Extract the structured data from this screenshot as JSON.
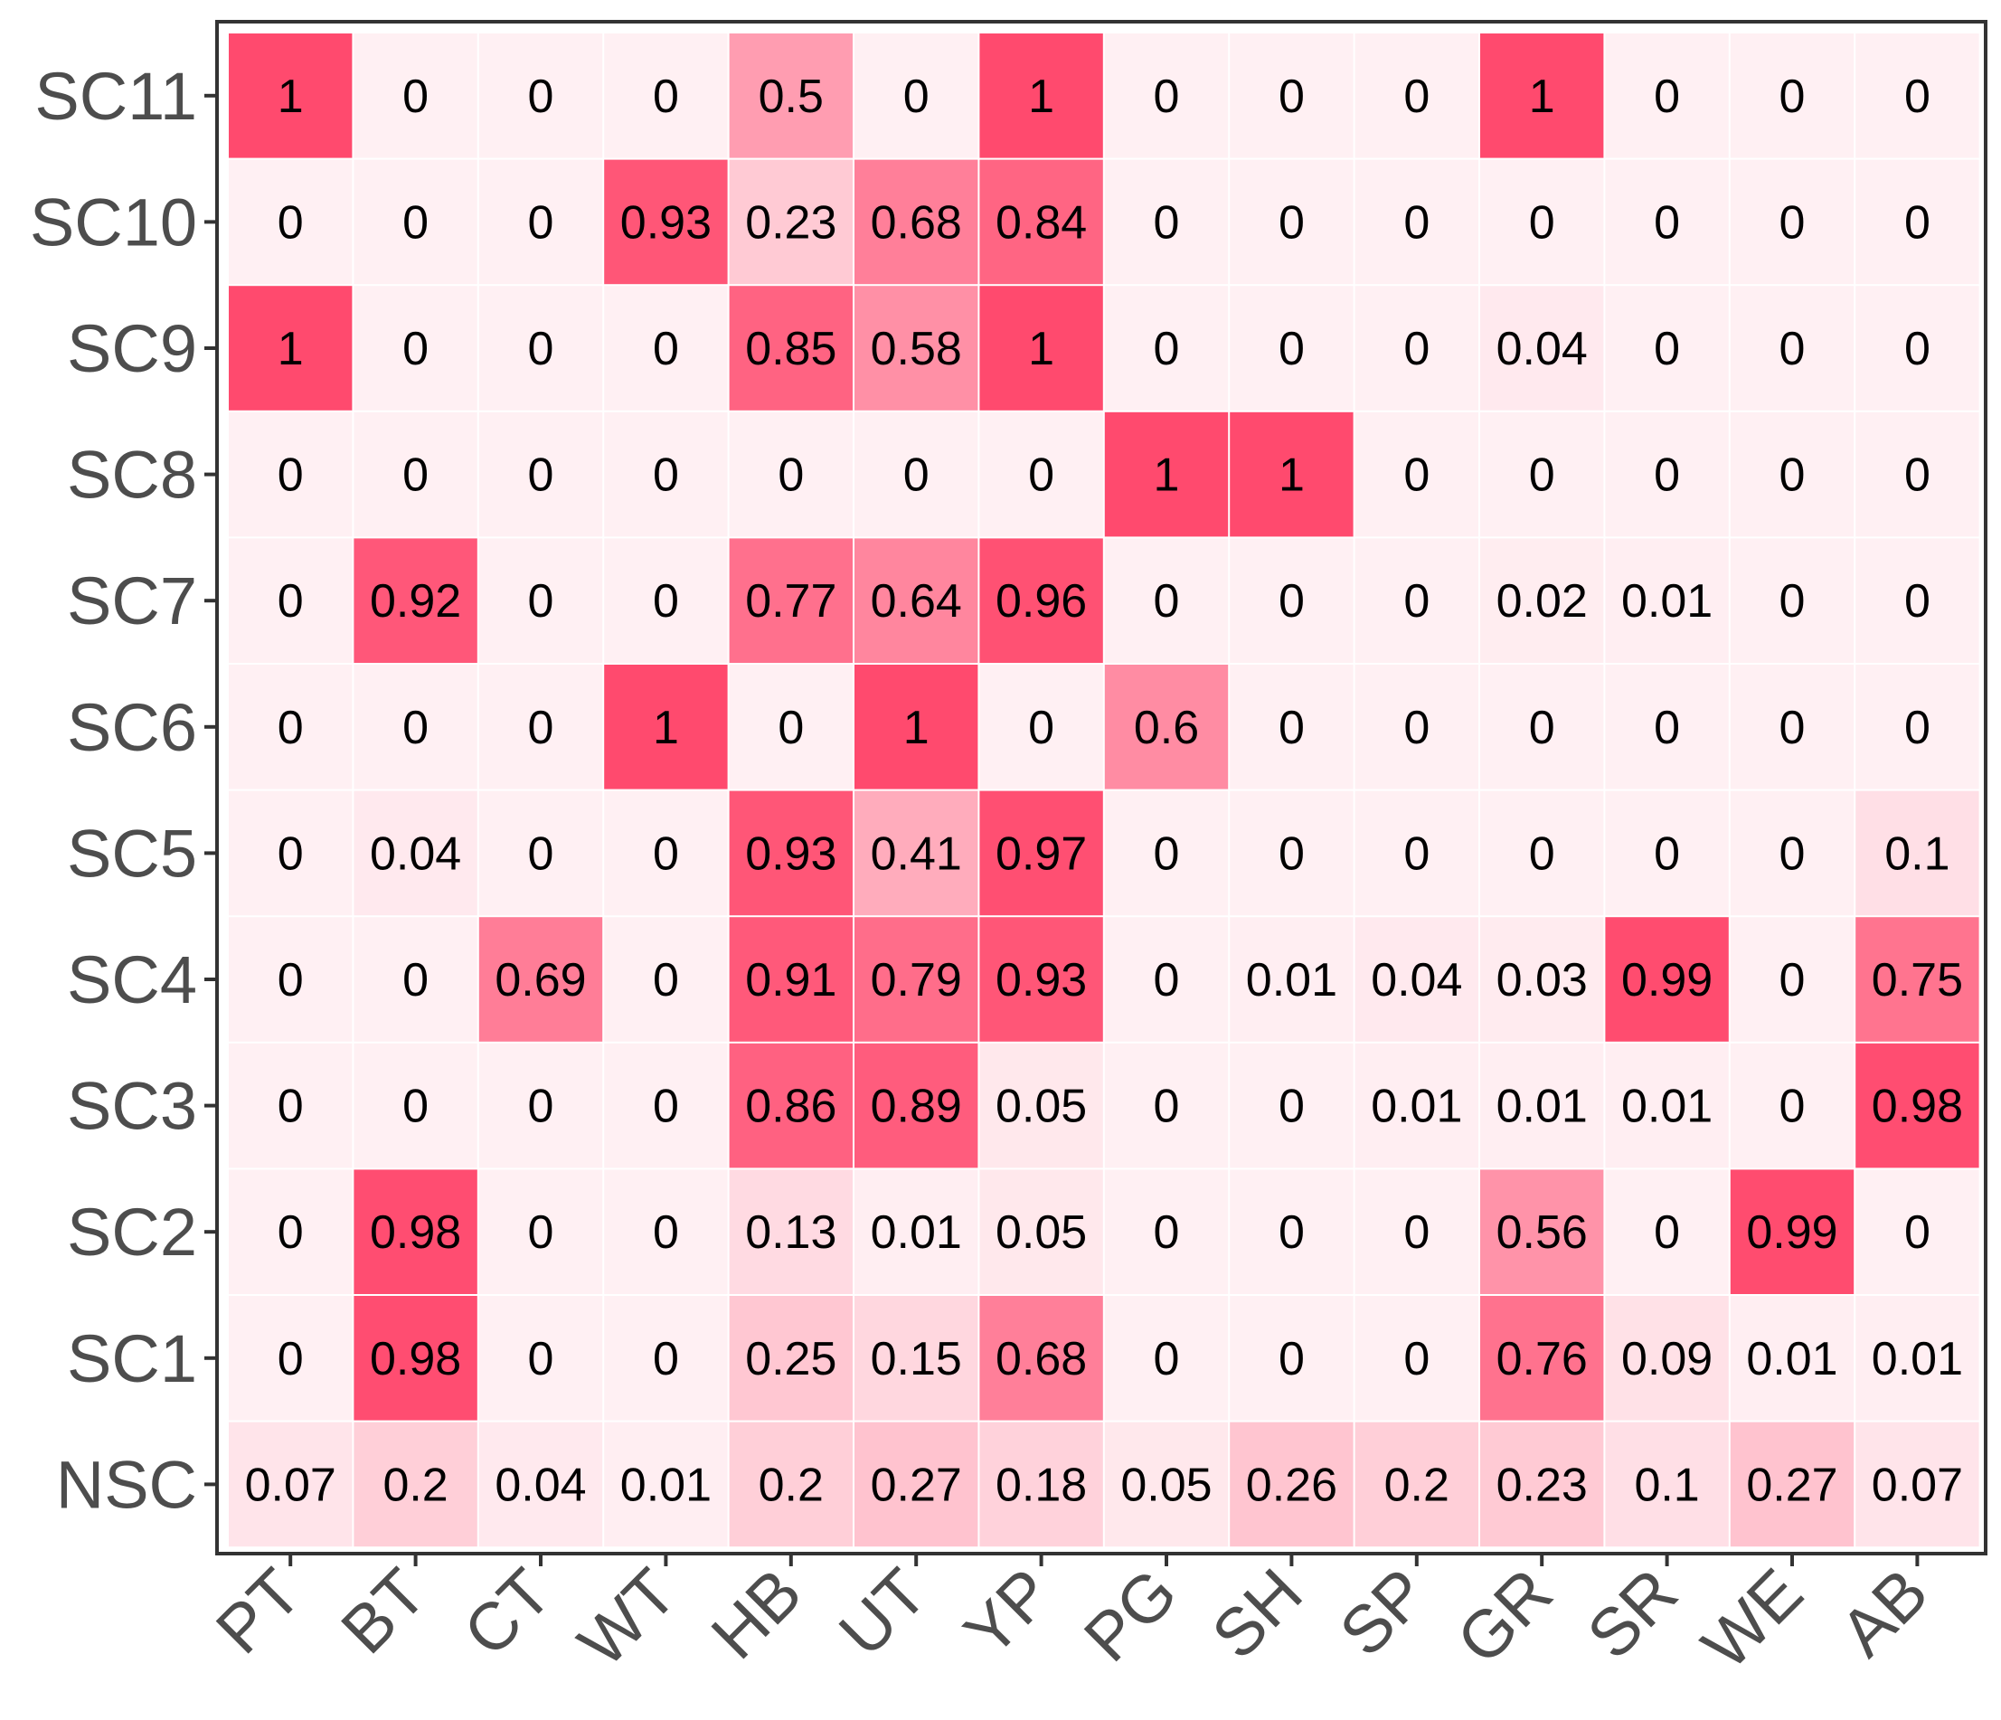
{
  "chart_data": {
    "type": "heatmap",
    "title": "",
    "xlabel": "",
    "ylabel": "",
    "x_categories": [
      "PT",
      "BT",
      "CT",
      "WT",
      "HB",
      "UT",
      "YP",
      "PG",
      "SH",
      "SP",
      "GR",
      "SR",
      "WE",
      "AB"
    ],
    "y_categories": [
      "SC11",
      "SC10",
      "SC9",
      "SC8",
      "SC7",
      "SC6",
      "SC5",
      "SC4",
      "SC3",
      "SC2",
      "SC1",
      "NSC"
    ],
    "values": [
      [
        "1",
        "0",
        "0",
        "0",
        "0.5",
        "0",
        "1",
        "0",
        "0",
        "0",
        "1",
        "0",
        "0",
        "0"
      ],
      [
        "0",
        "0",
        "0",
        "0.93",
        "0.23",
        "0.68",
        "0.84",
        "0",
        "0",
        "0",
        "0",
        "0",
        "0",
        "0"
      ],
      [
        "1",
        "0",
        "0",
        "0",
        "0.85",
        "0.58",
        "1",
        "0",
        "0",
        "0",
        "0.04",
        "0",
        "0",
        "0"
      ],
      [
        "0",
        "0",
        "0",
        "0",
        "0",
        "0",
        "0",
        "1",
        "1",
        "0",
        "0",
        "0",
        "0",
        "0"
      ],
      [
        "0",
        "0.92",
        "0",
        "0",
        "0.77",
        "0.64",
        "0.96",
        "0",
        "0",
        "0",
        "0.02",
        "0.01",
        "0",
        "0"
      ],
      [
        "0",
        "0",
        "0",
        "1",
        "0",
        "1",
        "0",
        "0.6",
        "0",
        "0",
        "0",
        "0",
        "0",
        "0"
      ],
      [
        "0",
        "0.04",
        "0",
        "0",
        "0.93",
        "0.41",
        "0.97",
        "0",
        "0",
        "0",
        "0",
        "0",
        "0",
        "0.1"
      ],
      [
        "0",
        "0",
        "0.69",
        "0",
        "0.91",
        "0.79",
        "0.93",
        "0",
        "0.01",
        "0.04",
        "0.03",
        "0.99",
        "0",
        "0.75"
      ],
      [
        "0",
        "0",
        "0",
        "0",
        "0.86",
        "0.89",
        "0.05",
        "0",
        "0",
        "0.01",
        "0.01",
        "0.01",
        "0",
        "0.98"
      ],
      [
        "0",
        "0.98",
        "0",
        "0",
        "0.13",
        "0.01",
        "0.05",
        "0",
        "0",
        "0",
        "0.56",
        "0",
        "0.99",
        "0"
      ],
      [
        "0",
        "0.98",
        "0",
        "0",
        "0.25",
        "0.15",
        "0.68",
        "0",
        "0",
        "0",
        "0.76",
        "0.09",
        "0.01",
        "0.01"
      ],
      [
        "0.07",
        "0.2",
        "0.04",
        "0.01",
        "0.2",
        "0.27",
        "0.18",
        "0.05",
        "0.26",
        "0.2",
        "0.23",
        "0.1",
        "0.27",
        "0.07"
      ]
    ],
    "color_scale": {
      "low": "#fff0f3",
      "high": "#ff4a6e"
    },
    "legend": "none",
    "grid": false
  }
}
